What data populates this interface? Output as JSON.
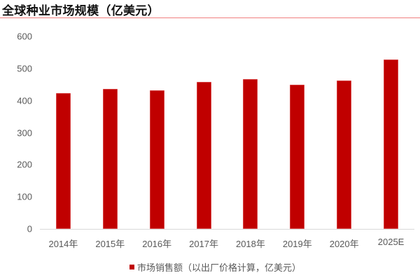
{
  "title": "全球种业市场规模（亿美元）",
  "colors": {
    "bar": "#c00000",
    "title_rule": "#f08080",
    "axis": "#d9d9d9",
    "text": "#595959"
  },
  "chart_data": {
    "type": "bar",
    "title": "全球种业市场规模（亿美元）",
    "xlabel": "",
    "ylabel": "",
    "categories": [
      "2014年",
      "2015年",
      "2016年",
      "2017年",
      "2018年",
      "2019年",
      "2020年",
      "2025E"
    ],
    "series": [
      {
        "name": "市场销售额（以出厂价格计算，亿美元）",
        "values": [
          424,
          437,
          432,
          459,
          467,
          450,
          463,
          528
        ]
      }
    ],
    "ylim": [
      0,
      600
    ],
    "yticks": [
      0,
      100,
      200,
      300,
      400,
      500,
      600
    ],
    "grid": false,
    "legend_position": "bottom"
  },
  "axis": {
    "yticks": [
      "600",
      "500",
      "400",
      "300",
      "200",
      "100",
      "0"
    ]
  },
  "legend": {
    "label": "市场销售额（以出厂价格计算，亿美元）"
  }
}
